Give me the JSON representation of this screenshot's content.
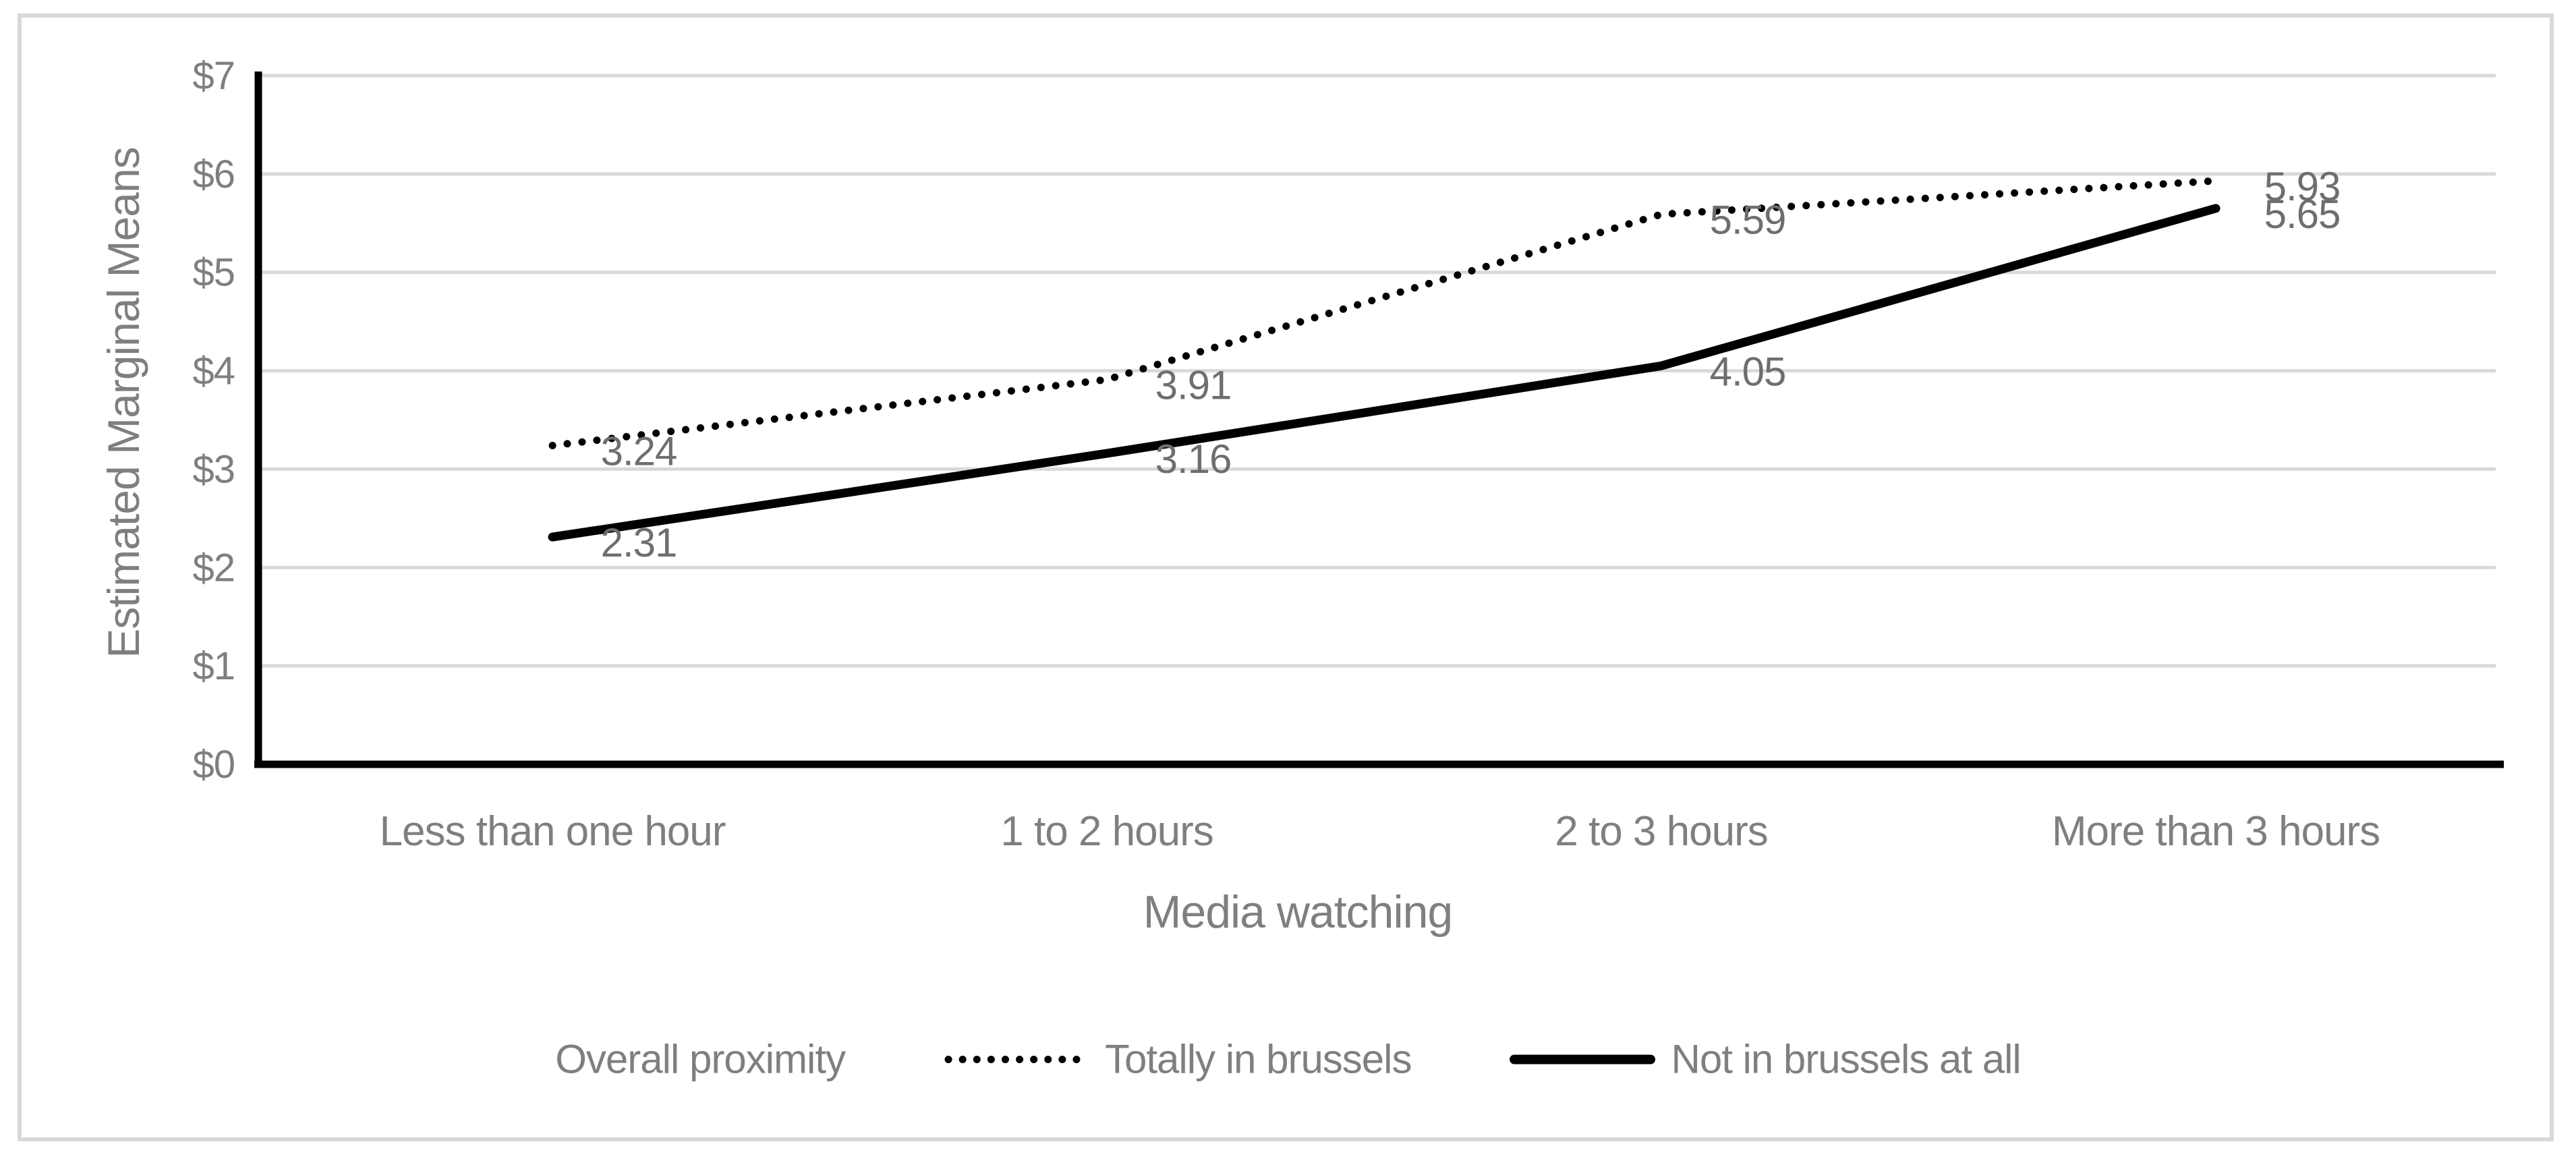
{
  "chart_data": {
    "type": "line",
    "title": "",
    "xlabel": "Media watching",
    "ylabel": "Estimated Marginal Means",
    "categories": [
      "Less than one hour",
      "1 to 2 hours",
      "2 to 3 hours",
      "More than 3 hours"
    ],
    "y_ticks": [
      "$0",
      "$1",
      "$2",
      "$3",
      "$4",
      "$5",
      "$6",
      "$7"
    ],
    "ylim": [
      0,
      7
    ],
    "grid": "horizontal",
    "legend_position": "bottom",
    "legend_title": "Overall proximity",
    "series": [
      {
        "name": "Totally in brussels",
        "style": "dotted",
        "color": "#000000",
        "values": [
          3.24,
          3.91,
          5.59,
          5.93
        ],
        "labels": [
          "3.24",
          "3.91",
          "5.59",
          "5.93"
        ]
      },
      {
        "name": "Not in brussels at all",
        "style": "solid",
        "color": "#000000",
        "values": [
          2.31,
          3.16,
          4.05,
          5.65
        ],
        "labels": [
          "2.31",
          "3.16",
          "4.05",
          "5.65"
        ]
      }
    ]
  },
  "colors": {
    "frame": "#d9d9d9",
    "grid": "#d9d9d9",
    "axis": "#000000",
    "axis_text": "#7f7f7f",
    "data_label": "#6e6e6e"
  }
}
